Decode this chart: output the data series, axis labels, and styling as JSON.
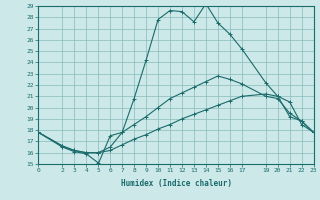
{
  "xlabel": "Humidex (Indice chaleur)",
  "bg_color": "#cce8e8",
  "line_color": "#1a6b6b",
  "grid_color": "#88bbbb",
  "line1_x": [
    0,
    2,
    3,
    4,
    5,
    5,
    6,
    7,
    8,
    9,
    10,
    11,
    12,
    13,
    14,
    15,
    16,
    17,
    19,
    20,
    21,
    22,
    23
  ],
  "line1_y": [
    17.8,
    16.5,
    16.1,
    15.9,
    15.1,
    15.0,
    17.5,
    17.8,
    20.8,
    24.2,
    27.8,
    28.6,
    28.5,
    27.6,
    29.2,
    27.5,
    26.5,
    25.2,
    22.2,
    21.0,
    19.2,
    18.8,
    17.8
  ],
  "line2_x": [
    0,
    2,
    3,
    4,
    5,
    6,
    7,
    8,
    9,
    10,
    11,
    12,
    13,
    14,
    15,
    16,
    17,
    19,
    20,
    21,
    22,
    23
  ],
  "line2_y": [
    17.8,
    16.6,
    16.2,
    16.0,
    16.0,
    16.5,
    17.8,
    18.5,
    19.2,
    20.0,
    20.8,
    21.3,
    21.8,
    22.3,
    22.8,
    22.5,
    22.1,
    21.0,
    20.8,
    19.5,
    18.8,
    17.8
  ],
  "line3_x": [
    0,
    2,
    3,
    4,
    5,
    6,
    7,
    8,
    9,
    10,
    11,
    12,
    13,
    14,
    15,
    16,
    17,
    19,
    20,
    21,
    22,
    23
  ],
  "line3_y": [
    17.8,
    16.6,
    16.2,
    16.0,
    16.0,
    16.2,
    16.7,
    17.2,
    17.6,
    18.1,
    18.5,
    19.0,
    19.4,
    19.8,
    20.2,
    20.6,
    21.0,
    21.2,
    21.0,
    20.5,
    18.5,
    17.8
  ],
  "xmin": 0,
  "xmax": 23,
  "ymin": 15,
  "ymax": 29,
  "xticks": [
    0,
    2,
    3,
    4,
    5,
    6,
    7,
    8,
    9,
    10,
    11,
    12,
    13,
    14,
    15,
    16,
    17,
    19,
    20,
    21,
    22,
    23
  ],
  "yticks": [
    15,
    16,
    17,
    18,
    19,
    20,
    21,
    22,
    23,
    24,
    25,
    26,
    27,
    28,
    29
  ]
}
